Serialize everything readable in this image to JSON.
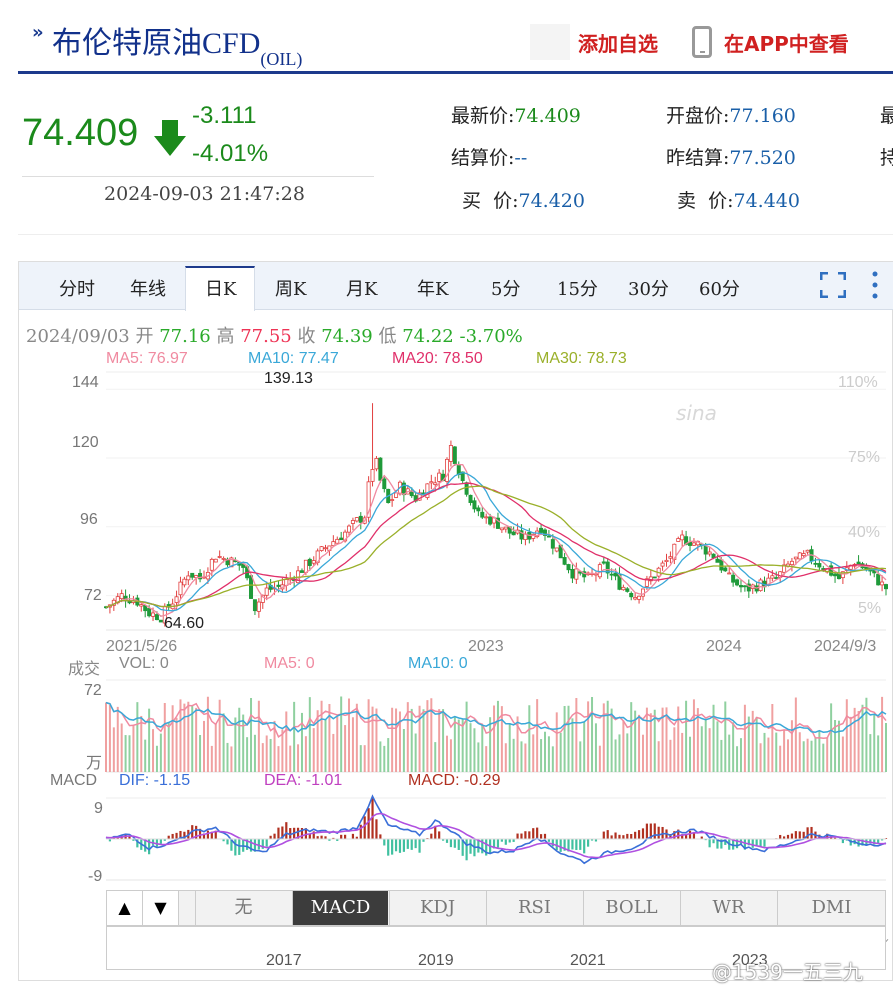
{
  "header": {
    "title": "布伦特原油CFD",
    "code": "(OIL)",
    "add_favorite": "添加自选",
    "app_link": "在APP中查看"
  },
  "quote": {
    "price": "74.409",
    "change": "-3.111",
    "change_pct": "-4.01%",
    "timestamp": "2024-09-03 21:47:28",
    "latest_label": "最新价:",
    "latest_value": "74.409",
    "open_label": "开盘价:",
    "open_value": "77.160",
    "settle_label": "结算价:",
    "settle_value": "--",
    "prev_settle_label": "昨结算:",
    "prev_settle_value": "77.520",
    "bid_label": "买  价:",
    "bid_value": "74.420",
    "ask_label": "卖  价:",
    "ask_value": "74.440",
    "cut_label_1": "最",
    "cut_label_2": "持"
  },
  "tabs": [
    "分时",
    "年线",
    "日K",
    "周K",
    "月K",
    "年K",
    "5分",
    "15分",
    "30分",
    "60分"
  ],
  "active_tab": "日K",
  "info": {
    "date": "2024/09/03",
    "open_label": "开",
    "open": "77.16",
    "high_label": "高",
    "high": "77.55",
    "close_label": "收",
    "close": "74.39",
    "low_label": "低",
    "low": "74.22",
    "pct": "-3.70%"
  },
  "ma": {
    "ma5": "MA5: 76.97",
    "ma10": "MA10: 77.47",
    "ma20": "MA20: 78.50",
    "ma30": "MA30: 78.73",
    "ma5_color": "#f08aa0",
    "ma10_color": "#3aa8d8",
    "ma20_color": "#e0306a",
    "ma30_color": "#9ab02a"
  },
  "volume": {
    "title": "成交",
    "vol": "VOL: 0",
    "ma5": "MA5: 0",
    "ma10": "MA10: 0",
    "top_tick": "72",
    "unit": "万"
  },
  "macd": {
    "title": "MACD",
    "dif": "DIF: -1.15",
    "dea": "DEA: -1.01",
    "macd": "MACD: -0.29",
    "top_tick": "9",
    "bottom_tick": "-9"
  },
  "indicators": [
    "无",
    "MACD",
    "KDJ",
    "RSI",
    "BOLL",
    "WR",
    "DMI"
  ],
  "active_indicator": "MACD",
  "navigator": {
    "labels": [
      "2017",
      "2019",
      "2021",
      "2023"
    ]
  },
  "watermark": "@1539一五三九",
  "chart_data": {
    "type": "candlestick",
    "y_ticks": [
      "144",
      "120",
      "96",
      "72"
    ],
    "right_ticks": [
      "110%",
      "75%",
      "40%",
      "5%"
    ],
    "x_labels": [
      "2021/5/26",
      "2023",
      "2024",
      "2024/9/3"
    ],
    "annotations": [
      "139.13",
      "64.60"
    ],
    "ylim": [
      60,
      150
    ],
    "price_path": [
      [
        0,
        68
      ],
      [
        4,
        72
      ],
      [
        8,
        70
      ],
      [
        11,
        66
      ],
      [
        14,
        64.6
      ],
      [
        17,
        70
      ],
      [
        21,
        80
      ],
      [
        24,
        78
      ],
      [
        28,
        86
      ],
      [
        32,
        84
      ],
      [
        35,
        82
      ],
      [
        38,
        68
      ],
      [
        41,
        74
      ],
      [
        44,
        75
      ],
      [
        49,
        80
      ],
      [
        53,
        85
      ],
      [
        57,
        90
      ],
      [
        61,
        94
      ],
      [
        64,
        98
      ],
      [
        66,
        100
      ],
      [
        67,
        110
      ],
      [
        68,
        139.13
      ],
      [
        69,
        118
      ],
      [
        70,
        112
      ],
      [
        72,
        104
      ],
      [
        75,
        110
      ],
      [
        79,
        106
      ],
      [
        83,
        112
      ],
      [
        86,
        114
      ],
      [
        88,
        124
      ],
      [
        91,
        112
      ],
      [
        95,
        100
      ],
      [
        99,
        98
      ],
      [
        103,
        94
      ],
      [
        107,
        92
      ],
      [
        111,
        96
      ],
      [
        115,
        88
      ],
      [
        119,
        80
      ],
      [
        123,
        78
      ],
      [
        127,
        82
      ],
      [
        131,
        76
      ],
      [
        135,
        72
      ],
      [
        139,
        78
      ],
      [
        143,
        84
      ],
      [
        147,
        92
      ],
      [
        151,
        90
      ],
      [
        155,
        86
      ],
      [
        159,
        78
      ],
      [
        163,
        74
      ],
      [
        167,
        76
      ],
      [
        171,
        78
      ],
      [
        175,
        84
      ],
      [
        179,
        86
      ],
      [
        183,
        82
      ],
      [
        187,
        78
      ],
      [
        191,
        84
      ],
      [
        195,
        80
      ],
      [
        199,
        74.39
      ]
    ],
    "xlim": [
      0,
      199
    ],
    "macd_path": [
      [
        0,
        0
      ],
      [
        6,
        1
      ],
      [
        11,
        -2
      ],
      [
        16,
        -1
      ],
      [
        22,
        1.5
      ],
      [
        28,
        2.5
      ],
      [
        34,
        -1.5
      ],
      [
        40,
        -3
      ],
      [
        46,
        1
      ],
      [
        52,
        2
      ],
      [
        58,
        1.5
      ],
      [
        64,
        2.5
      ],
      [
        68,
        9
      ],
      [
        72,
        3
      ],
      [
        76,
        2
      ],
      [
        80,
        1
      ],
      [
        84,
        4
      ],
      [
        88,
        2
      ],
      [
        92,
        -1
      ],
      [
        98,
        -3
      ],
      [
        104,
        -2.5
      ],
      [
        110,
        0.5
      ],
      [
        116,
        -3
      ],
      [
        122,
        -5
      ],
      [
        128,
        -3
      ],
      [
        134,
        -2
      ],
      [
        140,
        0.5
      ],
      [
        146,
        1.5
      ],
      [
        150,
        2
      ],
      [
        156,
        0
      ],
      [
        162,
        -1.5
      ],
      [
        168,
        -2.5
      ],
      [
        174,
        -1
      ],
      [
        180,
        1
      ],
      [
        186,
        0.5
      ],
      [
        192,
        -1
      ],
      [
        199,
        -1.15
      ]
    ],
    "volume_level": 0.55
  }
}
